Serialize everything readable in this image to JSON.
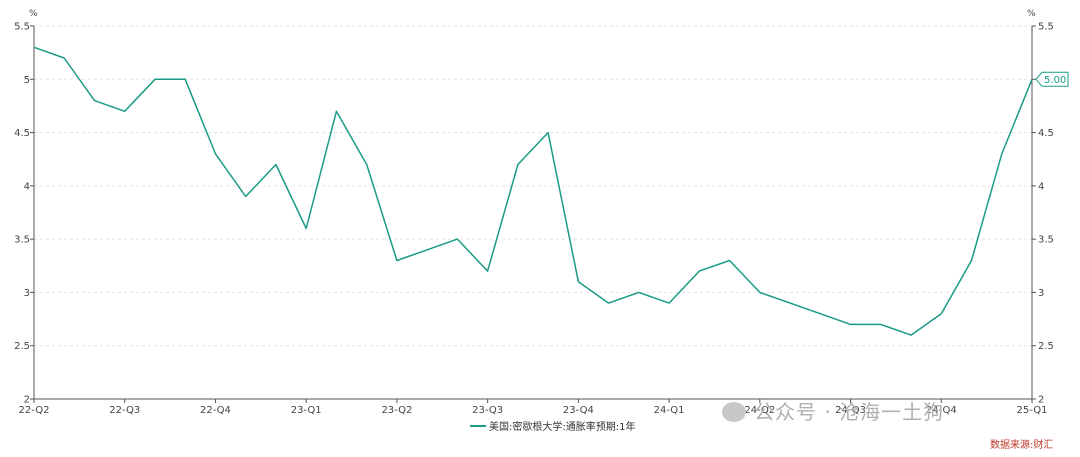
{
  "chart_data": {
    "type": "line",
    "title": "",
    "xlabel": "",
    "ylabel": "%",
    "ylabel_right": "%",
    "ylim": [
      2,
      5.5
    ],
    "yticks": [
      "2",
      "2.5",
      "3",
      "3.5",
      "4",
      "4.5",
      "5",
      "5.5"
    ],
    "x_tick_labels": [
      "22-Q2",
      "22-Q3",
      "22-Q4",
      "23-Q1",
      "23-Q2",
      "23-Q3",
      "23-Q4",
      "24-Q1",
      "24-Q2",
      "24-Q3",
      "24-Q4",
      "25-Q1"
    ],
    "grid": "horizontal dashed",
    "legend_position": "bottom-center",
    "series": [
      {
        "name": "美国:密歇根大学:通胀率预期:1年",
        "color": "#1a9b86",
        "values": [
          5.3,
          5.2,
          4.8,
          4.7,
          5.0,
          5.0,
          4.3,
          3.9,
          4.2,
          3.6,
          4.7,
          4.2,
          3.3,
          3.4,
          3.5,
          3.2,
          4.2,
          4.5,
          3.1,
          2.9,
          3.0,
          2.9,
          3.2,
          3.3,
          3.0,
          2.9,
          2.8,
          2.7,
          2.7,
          2.6,
          2.8,
          3.3,
          4.3,
          5.0
        ]
      }
    ],
    "end_label": "5.00"
  },
  "watermark": "公众号 · 沧海一土狗",
  "source_note": "数据来源:财汇"
}
